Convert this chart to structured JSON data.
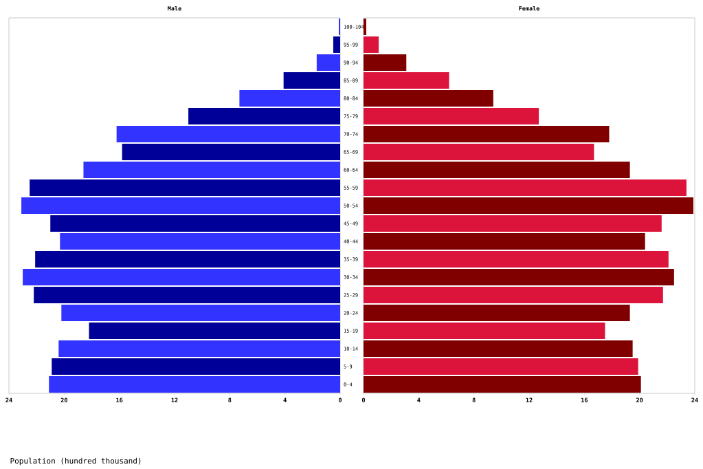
{
  "chart_data": [
    {
      "type": "bar",
      "title": "Male",
      "orientation": "horizontal",
      "xlabel": "Population (hundred thousand)",
      "categories": [
        "100-104",
        "95-99",
        "90-94",
        "85-89",
        "80-84",
        "75-79",
        "70-74",
        "65-69",
        "60-64",
        "55-59",
        "50-54",
        "45-49",
        "40-44",
        "35-39",
        "30-34",
        "25-29",
        "20-24",
        "15-19",
        "10-14",
        "5-9",
        "0-4"
      ],
      "values": [
        0.1,
        0.5,
        1.7,
        4.1,
        7.3,
        11.0,
        16.2,
        15.8,
        18.6,
        22.5,
        23.1,
        21.0,
        20.3,
        22.1,
        23.0,
        22.2,
        20.2,
        18.2,
        20.4,
        20.9,
        21.1
      ],
      "colors": [
        "#3333ff",
        "#000099",
        "#3333ff",
        "#000099",
        "#3333ff",
        "#000099",
        "#3333ff",
        "#000099",
        "#3333ff",
        "#000099",
        "#3333ff",
        "#000099",
        "#3333ff",
        "#000099",
        "#3333ff",
        "#000099",
        "#3333ff",
        "#000099",
        "#3333ff",
        "#000099",
        "#3333ff"
      ],
      "xlim": [
        24,
        0
      ],
      "xticks": [
        24,
        20,
        16,
        12,
        8,
        4,
        0
      ]
    },
    {
      "type": "bar",
      "title": "Female",
      "orientation": "horizontal",
      "tick_labels": "x",
      "categories": [
        null,
        null,
        null,
        null,
        null,
        null,
        null,
        null,
        null,
        null,
        null,
        null,
        null,
        null,
        null,
        null,
        null,
        null,
        null,
        null,
        null
      ],
      "values": [
        0.2,
        1.1,
        3.1,
        6.2,
        9.4,
        12.7,
        17.8,
        16.7,
        19.3,
        23.4,
        23.9,
        21.6,
        20.4,
        22.1,
        22.5,
        21.7,
        19.3,
        17.5,
        19.5,
        19.9,
        20.1
      ],
      "colors": [
        "#800000",
        "#dc143c",
        "#800000",
        "#dc143c",
        "#800000",
        "#dc143c",
        "#800000",
        "#dc143c",
        "#800000",
        "#dc143c",
        "#800000",
        "#dc143c",
        "#800000",
        "#dc143c",
        "#800000",
        "#dc143c",
        "#800000",
        "#dc143c",
        "#800000",
        "#dc143c",
        "#800000"
      ],
      "xlim": [
        0,
        24
      ],
      "xticks": [
        0,
        4,
        8,
        12,
        16,
        20,
        24
      ]
    }
  ]
}
